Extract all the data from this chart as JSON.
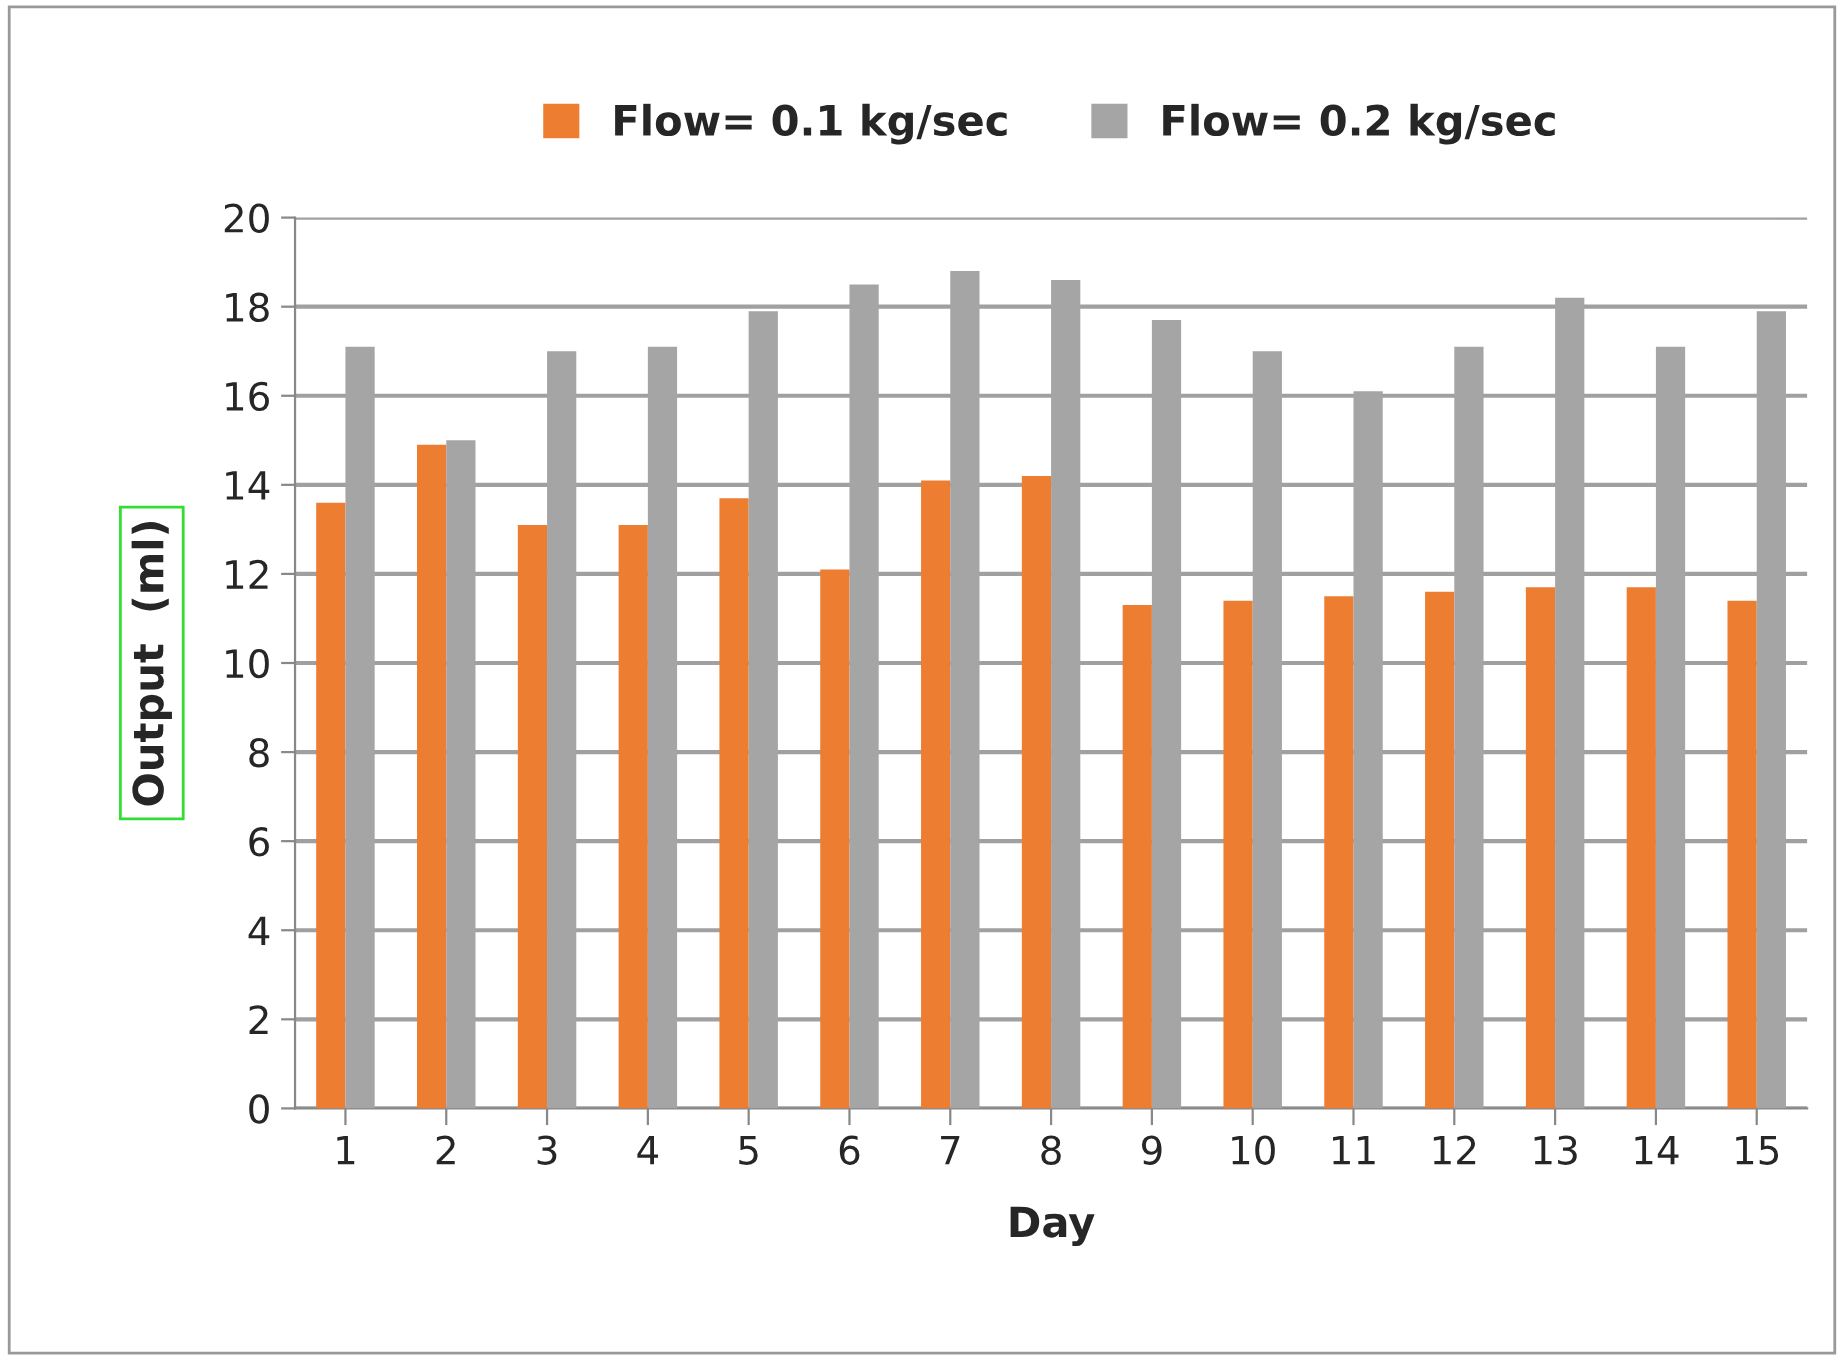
{
  "chart_data": {
    "type": "bar",
    "xlabel": "Day",
    "ylabel": "Output  (ml)",
    "categories": [
      "1",
      "2",
      "3",
      "4",
      "5",
      "6",
      "7",
      "8",
      "9",
      "10",
      "11",
      "12",
      "13",
      "14",
      "15"
    ],
    "series": [
      {
        "name": "Flow= 0.1 kg/sec",
        "color": "#ed7d31",
        "values": [
          13.6,
          14.9,
          13.1,
          13.1,
          13.7,
          12.1,
          14.1,
          14.2,
          11.3,
          11.4,
          11.5,
          11.6,
          11.7,
          11.7,
          11.4
        ]
      },
      {
        "name": "Flow= 0.2 kg/sec",
        "color": "#a5a5a5",
        "values": [
          17.1,
          15.0,
          17.0,
          17.1,
          17.9,
          18.5,
          18.8,
          18.6,
          17.7,
          17.0,
          16.1,
          17.1,
          18.2,
          17.1,
          17.9
        ]
      }
    ],
    "ylim": [
      0,
      20
    ],
    "yticks": [
      0,
      2,
      4,
      6,
      8,
      10,
      12,
      14,
      16,
      18,
      20
    ],
    "grid": "y",
    "legend": "top"
  }
}
